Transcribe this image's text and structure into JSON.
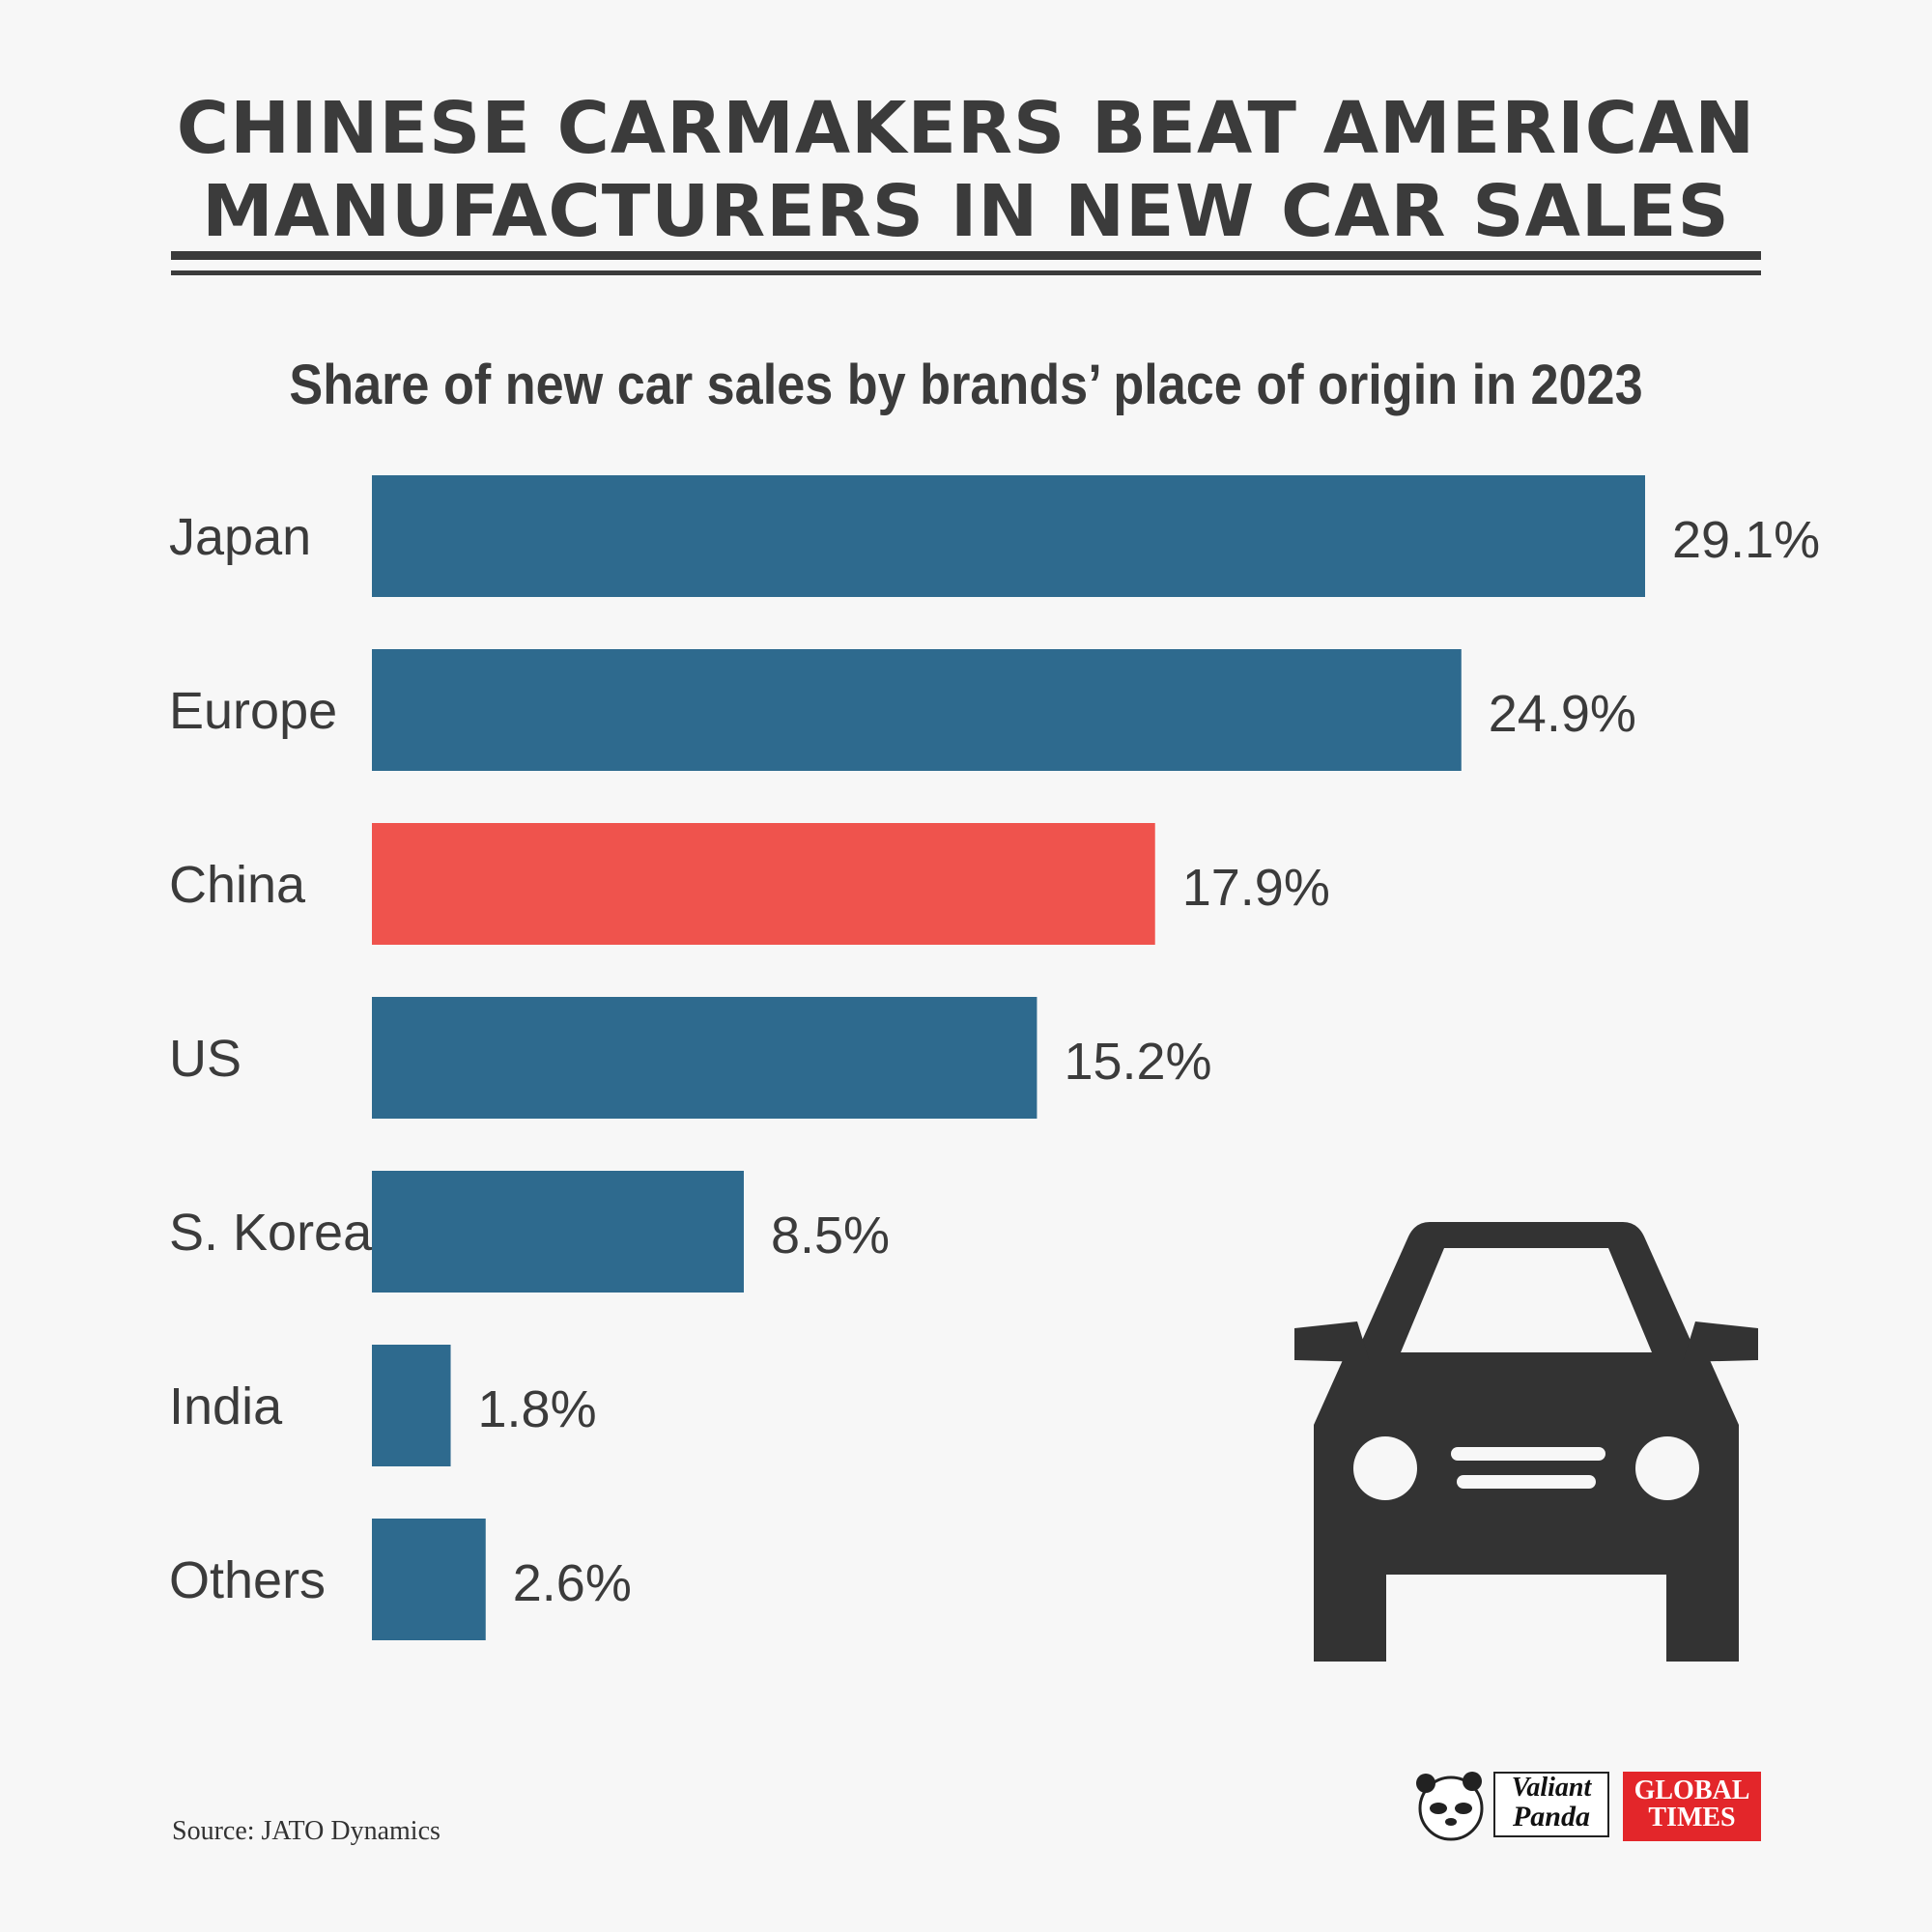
{
  "title": {
    "line1": "CHINESE CARMAKERS BEAT AMERICAN",
    "line2": "MANUFACTURERS IN NEW CAR SALES"
  },
  "subtitle": "Share of new car sales by brands’ place of origin in 2023",
  "source": "Source: JATO Dynamics",
  "logos": {
    "panda_line1": "Valiant",
    "panda_line2": "Panda",
    "gt_line1": "GLOBAL",
    "gt_line2": "TIMES"
  },
  "colors": {
    "bar_default": "#2e6a8e",
    "bar_highlight": "#ef534d",
    "text": "#3b3b3b",
    "background": "#f7f7f7",
    "car_icon": "#333333"
  },
  "icons": [
    "car-icon",
    "valiant-panda-logo",
    "global-times-logo"
  ],
  "chart_data": {
    "type": "bar",
    "orientation": "horizontal",
    "categories": [
      "Japan",
      "Europe",
      "China",
      "US",
      "S. Korea",
      "India",
      "Others"
    ],
    "values": [
      29.1,
      24.9,
      17.9,
      15.2,
      8.5,
      1.8,
      2.6
    ],
    "value_labels": [
      "29.1%",
      "24.9%",
      "17.9%",
      "15.2%",
      "8.5%",
      "1.8%",
      "2.6%"
    ],
    "highlight": "China",
    "unit": "%",
    "xlim": [
      0,
      29.1
    ],
    "grid": false,
    "legend": "none"
  }
}
